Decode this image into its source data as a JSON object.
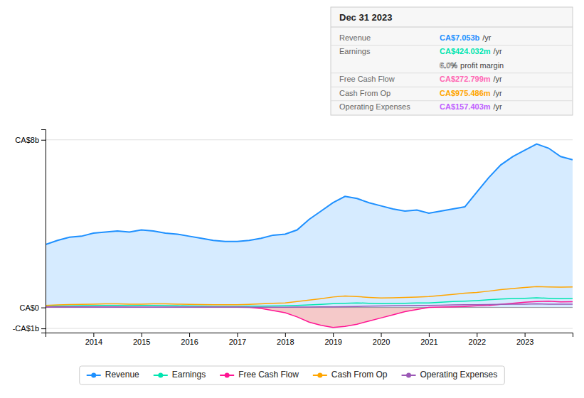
{
  "chart_data": {
    "type": "line",
    "title": "Dec 31 2023",
    "annotations": [
      {
        "label": "Revenue",
        "text": "CA$7.053b",
        "unit": "/yr",
        "color": "#1e90ff"
      },
      {
        "label": "Earnings",
        "text": "CA$424.032m",
        "unit": "/yr",
        "color": "#00e5b0"
      },
      {
        "text": "6.0%",
        "unit": "profit margin",
        "color": "#ffffff"
      },
      {
        "label": "Free Cash Flow",
        "text": "CA$272.799m",
        "unit": "/yr",
        "color": "#ff69b4"
      },
      {
        "label": "Cash From Op",
        "text": "CA$975.486m",
        "unit": "/yr",
        "color": "#ffa500"
      },
      {
        "label": "Operating Expenses",
        "text": "CA$157.403m",
        "unit": "/yr",
        "color": "#bf5fff"
      }
    ],
    "x": [
      2013.0,
      2013.25,
      2013.5,
      2013.75,
      2014.0,
      2014.25,
      2014.5,
      2014.75,
      2015.0,
      2015.25,
      2015.5,
      2015.75,
      2016.0,
      2016.25,
      2016.5,
      2016.75,
      2017.0,
      2017.25,
      2017.5,
      2017.75,
      2018.0,
      2018.25,
      2018.5,
      2018.75,
      2019.0,
      2019.25,
      2019.5,
      2019.75,
      2020.0,
      2020.25,
      2020.5,
      2020.75,
      2021.0,
      2021.25,
      2021.5,
      2021.75,
      2022.0,
      2022.25,
      2022.5,
      2022.75,
      2023.0,
      2023.25,
      2023.5,
      2023.75,
      2024.0
    ],
    "series": [
      {
        "name": "Revenue",
        "color": "#1e90ff",
        "type": "area",
        "values": [
          3.0,
          3.2,
          3.35,
          3.4,
          3.55,
          3.6,
          3.65,
          3.6,
          3.7,
          3.65,
          3.55,
          3.5,
          3.4,
          3.3,
          3.2,
          3.15,
          3.15,
          3.2,
          3.3,
          3.45,
          3.5,
          3.7,
          4.2,
          4.6,
          5.0,
          5.3,
          5.2,
          5.0,
          4.85,
          4.7,
          4.6,
          4.65,
          4.5,
          4.6,
          4.7,
          4.8,
          5.5,
          6.2,
          6.8,
          7.2,
          7.5,
          7.8,
          7.6,
          7.2,
          7.05
        ]
      },
      {
        "name": "Earnings",
        "color": "#00e5b0",
        "type": "line",
        "values": [
          0.05,
          0.06,
          0.07,
          0.08,
          0.09,
          0.1,
          0.1,
          0.09,
          0.1,
          0.1,
          0.09,
          0.08,
          0.07,
          0.06,
          0.05,
          0.05,
          0.05,
          0.06,
          0.06,
          0.07,
          0.08,
          0.1,
          0.12,
          0.15,
          0.18,
          0.2,
          0.22,
          0.2,
          0.18,
          0.19,
          0.2,
          0.22,
          0.22,
          0.25,
          0.28,
          0.3,
          0.33,
          0.37,
          0.4,
          0.43,
          0.44,
          0.46,
          0.44,
          0.42,
          0.424
        ]
      },
      {
        "name": "Free Cash Flow",
        "color": "#ff1493",
        "type": "line",
        "values": [
          0.02,
          0.02,
          0.02,
          0.02,
          0.02,
          0.02,
          0.02,
          0.01,
          0.01,
          0.01,
          0.01,
          0.01,
          0.01,
          0.01,
          0.01,
          0.01,
          0.01,
          0.0,
          -0.05,
          -0.15,
          -0.25,
          -0.45,
          -0.7,
          -0.85,
          -0.95,
          -0.9,
          -0.8,
          -0.65,
          -0.5,
          -0.35,
          -0.2,
          -0.1,
          0.0,
          0.02,
          0.03,
          0.05,
          0.08,
          0.1,
          0.15,
          0.2,
          0.25,
          0.28,
          0.3,
          0.27,
          0.273
        ]
      },
      {
        "name": "Cash From Op",
        "color": "#ffa500",
        "type": "line",
        "values": [
          0.1,
          0.12,
          0.14,
          0.15,
          0.16,
          0.17,
          0.17,
          0.16,
          0.16,
          0.17,
          0.17,
          0.16,
          0.15,
          0.14,
          0.13,
          0.13,
          0.13,
          0.15,
          0.17,
          0.2,
          0.22,
          0.28,
          0.35,
          0.42,
          0.5,
          0.55,
          0.52,
          0.48,
          0.45,
          0.46,
          0.48,
          0.5,
          0.52,
          0.57,
          0.62,
          0.68,
          0.72,
          0.78,
          0.85,
          0.9,
          0.95,
          1.0,
          0.98,
          0.97,
          0.975
        ]
      },
      {
        "name": "Operating Expenses",
        "color": "#9b59b6",
        "type": "line",
        "values": [
          0.01,
          0.01,
          0.01,
          0.01,
          0.01,
          0.01,
          0.01,
          0.01,
          0.01,
          0.01,
          0.01,
          0.01,
          0.01,
          0.01,
          0.01,
          0.01,
          0.01,
          0.01,
          0.01,
          0.01,
          0.01,
          0.02,
          0.02,
          0.03,
          0.03,
          0.04,
          0.05,
          0.06,
          0.07,
          0.08,
          0.09,
          0.1,
          0.1,
          0.11,
          0.12,
          0.13,
          0.13,
          0.14,
          0.15,
          0.16,
          0.16,
          0.17,
          0.16,
          0.16,
          0.157
        ]
      }
    ],
    "xlim": [
      2013.0,
      2024.0
    ],
    "xticks": [
      2014,
      2015,
      2016,
      2017,
      2018,
      2019,
      2020,
      2021,
      2022,
      2023
    ],
    "ylim": [
      -1.2,
      8.5
    ],
    "yticks": [
      {
        "value": -1.0,
        "label": "-CA$1b"
      },
      {
        "value": 0.0,
        "label": "CA$0"
      },
      {
        "value": 8.0,
        "label": "CA$8b"
      }
    ],
    "grid": "y",
    "legend": "bottom"
  }
}
